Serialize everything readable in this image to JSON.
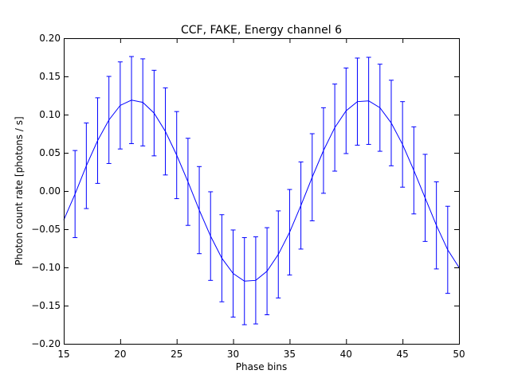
{
  "chart_data": {
    "type": "line",
    "title": "CCF, FAKE, Energy channel 6",
    "xlabel": "Phase bins",
    "ylabel": "Photon count rate [photons / s]",
    "xlim": [
      15,
      50
    ],
    "ylim": [
      -0.2,
      0.2
    ],
    "x_ticks": [
      "15",
      "20",
      "25",
      "30",
      "35",
      "40",
      "45",
      "50"
    ],
    "y_ticks": [
      "−0.20",
      "−0.15",
      "−0.10",
      "−0.05",
      "0.00",
      "0.05",
      "0.10",
      "0.15",
      "0.20"
    ],
    "grid": false,
    "line_color": "#0000ff",
    "series": [
      {
        "x": [
          15,
          16,
          17,
          18,
          19,
          20,
          21,
          22,
          23,
          24,
          25,
          26,
          27,
          28,
          29,
          30,
          31,
          32,
          33,
          34,
          35,
          36,
          37,
          38,
          39,
          40,
          41,
          42,
          43,
          44,
          45,
          46,
          47,
          48,
          49,
          50
        ],
        "y": [
          -0.038,
          -0.004,
          0.033,
          0.066,
          0.093,
          0.112,
          0.119,
          0.116,
          0.102,
          0.078,
          0.047,
          0.012,
          -0.025,
          -0.059,
          -0.088,
          -0.108,
          -0.118,
          -0.117,
          -0.105,
          -0.083,
          -0.054,
          -0.019,
          0.018,
          0.053,
          0.083,
          0.105,
          0.117,
          0.118,
          0.109,
          0.089,
          0.061,
          0.027,
          -0.009,
          -0.045,
          -0.077,
          -0.1
        ],
        "err": [
          null,
          0.057,
          0.056,
          0.056,
          0.057,
          0.057,
          0.057,
          0.057,
          0.056,
          0.057,
          0.057,
          0.057,
          0.057,
          0.058,
          0.057,
          0.057,
          0.057,
          0.057,
          0.057,
          0.057,
          0.056,
          0.057,
          0.057,
          0.056,
          0.057,
          0.056,
          0.057,
          0.057,
          0.057,
          0.056,
          0.056,
          0.057,
          0.057,
          0.057,
          0.057,
          null
        ]
      }
    ]
  }
}
